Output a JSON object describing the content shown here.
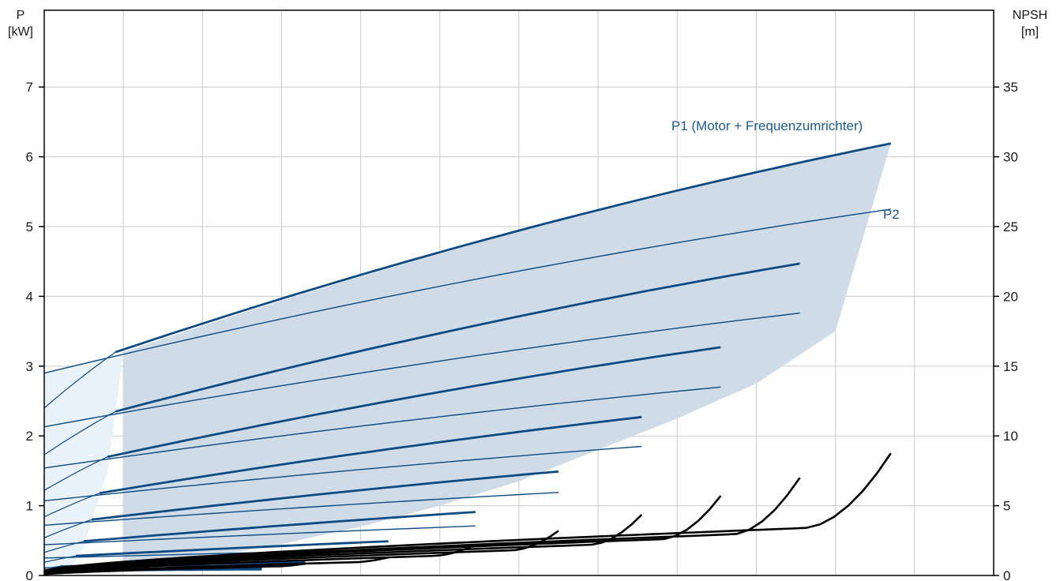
{
  "chart_data": {
    "type": "line",
    "x_categories": 12,
    "left_axis": {
      "title_line1": "P",
      "title_line2": "[kW]",
      "ticks": [
        "0",
        "1",
        "2",
        "3",
        "4",
        "5",
        "6",
        "7"
      ],
      "ylim": [
        0,
        8.1
      ]
    },
    "right_axis": {
      "title_line1": "NPSH",
      "title_line2": "[m]",
      "ticks": [
        "0",
        "5",
        "10",
        "15",
        "20",
        "25",
        "30",
        "35"
      ],
      "ylim": [
        0,
        40.5
      ]
    },
    "grid": true,
    "annotations": {
      "p1": "P1 (Motor + Frequenzumrichter)",
      "p2": "P2"
    },
    "colors": {
      "power": "#0d4a82",
      "npsh": "#000000",
      "envelope_fill": "#cfdce8",
      "extension_fill": "#e9f1f9",
      "annotation": "#1f5a8c"
    },
    "envelope": {
      "x": [
        1.0,
        2.0,
        3.0,
        4.0,
        5.0,
        6.0,
        7.0,
        8.0,
        9.0,
        10.0,
        10.7
      ],
      "y_top": [
        3.2,
        3.67,
        4.13,
        4.55,
        4.95,
        5.3,
        5.61,
        5.91,
        6.19
      ],
      "y_top_x": [
        1.0,
        2.0,
        3.0,
        4.0,
        5.0,
        6.0,
        7.0,
        8.0,
        10.7
      ],
      "y_bottom_x": [
        0.3,
        1.0,
        2.0,
        3.0,
        4.0,
        5.0,
        6.0,
        7.0,
        8.0,
        9.0,
        10.0,
        10.7
      ],
      "y_bottom": [
        0.05,
        0.12,
        0.25,
        0.45,
        0.7,
        1.0,
        1.35,
        1.8,
        2.25,
        2.75,
        3.5,
        6.19
      ]
    },
    "p1_curves": [
      {
        "x": [
          0.9,
          10.7
        ],
        "y": [
          3.2,
          6.19
        ],
        "curv": 0.25
      },
      {
        "x": [
          0.9,
          9.55
        ],
        "y": [
          2.35,
          4.47
        ],
        "curv": 0.22
      },
      {
        "x": [
          0.8,
          8.55
        ],
        "y": [
          1.7,
          3.27
        ],
        "curv": 0.2
      },
      {
        "x": [
          0.7,
          7.55
        ],
        "y": [
          1.18,
          2.27
        ],
        "curv": 0.18
      },
      {
        "x": [
          0.6,
          6.5
        ],
        "y": [
          0.8,
          1.49
        ],
        "curv": 0.15
      },
      {
        "x": [
          0.5,
          5.45
        ],
        "y": [
          0.49,
          0.91
        ],
        "curv": 0.12
      },
      {
        "x": [
          0.4,
          4.35
        ],
        "y": [
          0.28,
          0.49
        ],
        "curv": 0.1
      },
      {
        "x": [
          0.2,
          3.3
        ],
        "y": [
          0.13,
          0.19
        ],
        "curv": 0.05
      },
      {
        "x": [
          0.1,
          2.75
        ],
        "y": [
          0.07,
          0.1
        ],
        "curv": 0.05
      }
    ],
    "p2_curves": [
      {
        "x": [
          0.0,
          10.7
        ],
        "y": [
          2.9,
          5.25
        ],
        "curv": 0.25
      },
      {
        "x": [
          0.0,
          9.55
        ],
        "y": [
          2.13,
          3.76
        ],
        "curv": 0.22
      },
      {
        "x": [
          0.0,
          8.55
        ],
        "y": [
          1.54,
          2.7
        ],
        "curv": 0.2
      },
      {
        "x": [
          0.0,
          7.55
        ],
        "y": [
          1.07,
          1.85
        ],
        "curv": 0.18
      },
      {
        "x": [
          0.0,
          6.5
        ],
        "y": [
          0.72,
          1.19
        ],
        "curv": 0.15
      },
      {
        "x": [
          0.0,
          5.45
        ],
        "y": [
          0.44,
          0.71
        ],
        "curv": 0.12
      },
      {
        "x": [
          0.0,
          4.35
        ],
        "y": [
          0.25,
          0.37
        ],
        "curv": 0.1
      },
      {
        "x": [
          0.0,
          3.3
        ],
        "y": [
          0.11,
          0.16
        ],
        "curv": 0.05
      },
      {
        "x": [
          0.0,
          2.75
        ],
        "y": [
          0.06,
          0.08
        ],
        "curv": 0.05
      }
    ],
    "p1_extension_start_y": [
      2.4,
      1.73,
      1.22,
      0.84,
      0.54,
      0.33,
      0.19,
      0.1,
      0.05
    ],
    "npsh_curves": [
      {
        "x_end": 10.7,
        "y_end": 8.75,
        "knee_x": 9.6,
        "knee_y": 3.4,
        "base": 0.35
      },
      {
        "x_end": 9.55,
        "y_end": 7.0,
        "knee_x": 8.7,
        "knee_y": 2.95,
        "base": 0.3
      },
      {
        "x_end": 8.55,
        "y_end": 5.7,
        "knee_x": 7.8,
        "knee_y": 2.6,
        "base": 0.28
      },
      {
        "x_end": 7.55,
        "y_end": 4.35,
        "knee_x": 6.9,
        "knee_y": 2.2,
        "base": 0.25
      },
      {
        "x_end": 6.5,
        "y_end": 3.2,
        "knee_x": 5.9,
        "knee_y": 1.8,
        "base": 0.2
      },
      {
        "x_end": 5.45,
        "y_end": 2.2,
        "knee_x": 4.9,
        "knee_y": 1.4,
        "base": 0.15
      },
      {
        "x_end": 4.35,
        "y_end": 1.3,
        "knee_x": 3.9,
        "knee_y": 0.95,
        "base": 0.1
      },
      {
        "x_end": 3.3,
        "y_end": 0.85,
        "knee_x": 2.9,
        "knee_y": 0.65,
        "base": 0.08
      }
    ]
  }
}
